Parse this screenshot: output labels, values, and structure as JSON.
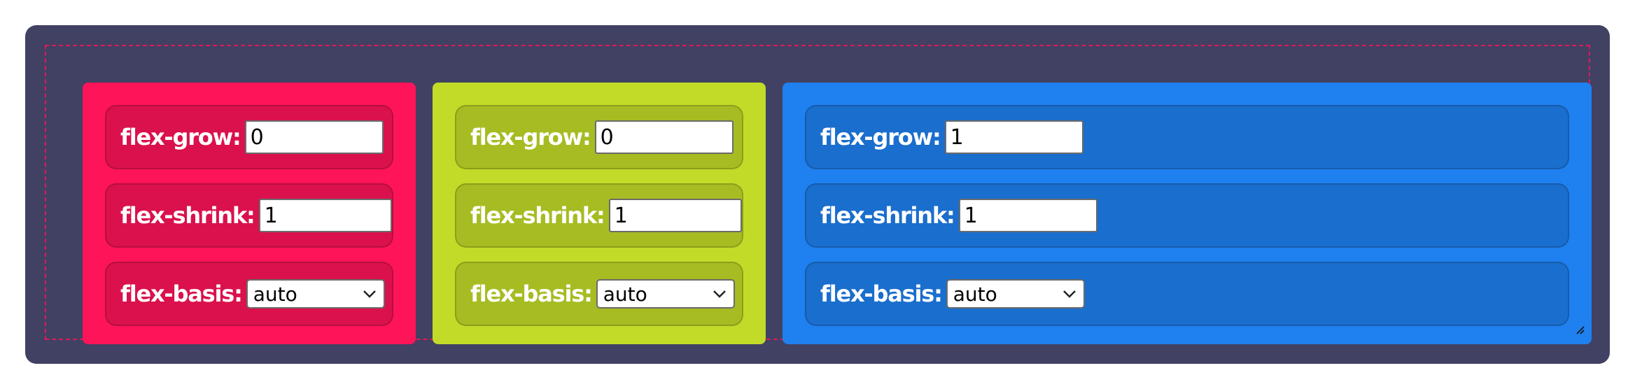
{
  "items": [
    {
      "color": "#fe1459",
      "grow_label": "flex-grow:",
      "grow_value": "0",
      "shrink_label": "flex-shrink:",
      "shrink_value": "1",
      "basis_label": "flex-basis:",
      "basis_value": "auto"
    },
    {
      "color": "#c2db28",
      "grow_label": "flex-grow:",
      "grow_value": "0",
      "shrink_label": "flex-shrink:",
      "shrink_value": "1",
      "basis_label": "flex-basis:",
      "basis_value": "auto"
    },
    {
      "color": "#1f80ef",
      "grow_label": "flex-grow:",
      "grow_value": "1",
      "shrink_label": "flex-shrink:",
      "shrink_value": "1",
      "basis_label": "flex-basis:",
      "basis_value": "auto"
    }
  ],
  "icons": {
    "select_arrow": "chevron-down-icon",
    "resize_handle": "resize-handle-icon"
  },
  "colors": {
    "container_bg": "#414163",
    "dashed_border": "#e0185a"
  }
}
